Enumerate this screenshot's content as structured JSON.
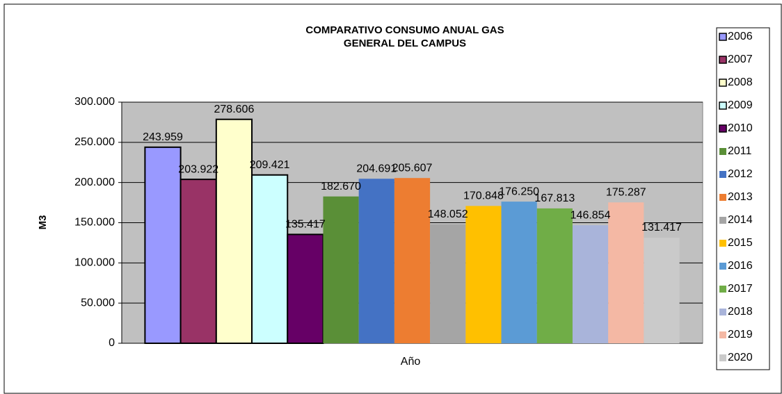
{
  "chart_data": {
    "type": "bar",
    "title": [
      "COMPARATIVO  CONSUMO ANUAL GAS",
      "GENERAL DEL CAMPUS"
    ],
    "x_label": "Año",
    "y_label": "M3",
    "categories": [
      null
    ],
    "series": [
      {
        "name": "2006",
        "color": "#9999ff",
        "edgecolor": "#000000",
        "values": [
          243959
        ],
        "value_labels": [
          "243.959"
        ]
      },
      {
        "name": "2007",
        "color": "#993366",
        "edgecolor": "#000000",
        "values": [
          203922
        ],
        "value_labels": [
          "203.922"
        ]
      },
      {
        "name": "2008",
        "color": "#ffffcc",
        "edgecolor": "#000000",
        "values": [
          278606
        ],
        "value_labels": [
          "278.606"
        ]
      },
      {
        "name": "2009",
        "color": "#ccffff",
        "edgecolor": "#000000",
        "values": [
          209421
        ],
        "value_labels": [
          "209.421"
        ]
      },
      {
        "name": "2010",
        "color": "#660066",
        "edgecolor": "#000000",
        "values": [
          135417
        ],
        "value_labels": [
          "135.417"
        ]
      },
      {
        "name": "2011",
        "color": "#5a8f37",
        "values": [
          182670
        ],
        "value_labels": [
          "182.670"
        ]
      },
      {
        "name": "2012",
        "color": "#4472c4",
        "values": [
          204691
        ],
        "value_labels": [
          "204.691"
        ]
      },
      {
        "name": "2013",
        "color": "#ed7d31",
        "values": [
          205607
        ],
        "value_labels": [
          "205.607"
        ]
      },
      {
        "name": "2014",
        "color": "#a5a5a5",
        "values": [
          148052
        ],
        "value_labels": [
          "148.052"
        ]
      },
      {
        "name": "2015",
        "color": "#ffc000",
        "values": [
          170848
        ],
        "value_labels": [
          "170.848"
        ]
      },
      {
        "name": "2016",
        "color": "#5b9bd5",
        "values": [
          176250
        ],
        "value_labels": [
          "176.250"
        ]
      },
      {
        "name": "2017",
        "color": "#70ad47",
        "values": [
          167813
        ],
        "value_labels": [
          "167.813"
        ]
      },
      {
        "name": "2018",
        "color": "#a9b4da",
        "values": [
          146854
        ],
        "value_labels": [
          "146.854"
        ]
      },
      {
        "name": "2019",
        "color": "#f4b8a4",
        "values": [
          175287
        ],
        "value_labels": [
          "175.287"
        ]
      },
      {
        "name": "2020",
        "color": "#cacaca",
        "values": [
          131417
        ],
        "value_labels": [
          "131.417"
        ]
      }
    ],
    "ylim": [
      0,
      300000
    ],
    "yticks": [
      0,
      {
        "value": 50000,
        "label": "50.000"
      },
      {
        "value": 100000,
        "label": "100.000"
      },
      {
        "value": 150000,
        "label": "150.000"
      },
      {
        "value": 200000,
        "label": "200.000"
      },
      {
        "value": 250000,
        "label": "250.000"
      },
      {
        "value": 300000,
        "label": "300.000"
      }
    ],
    "grid": true,
    "legend": "right"
  }
}
